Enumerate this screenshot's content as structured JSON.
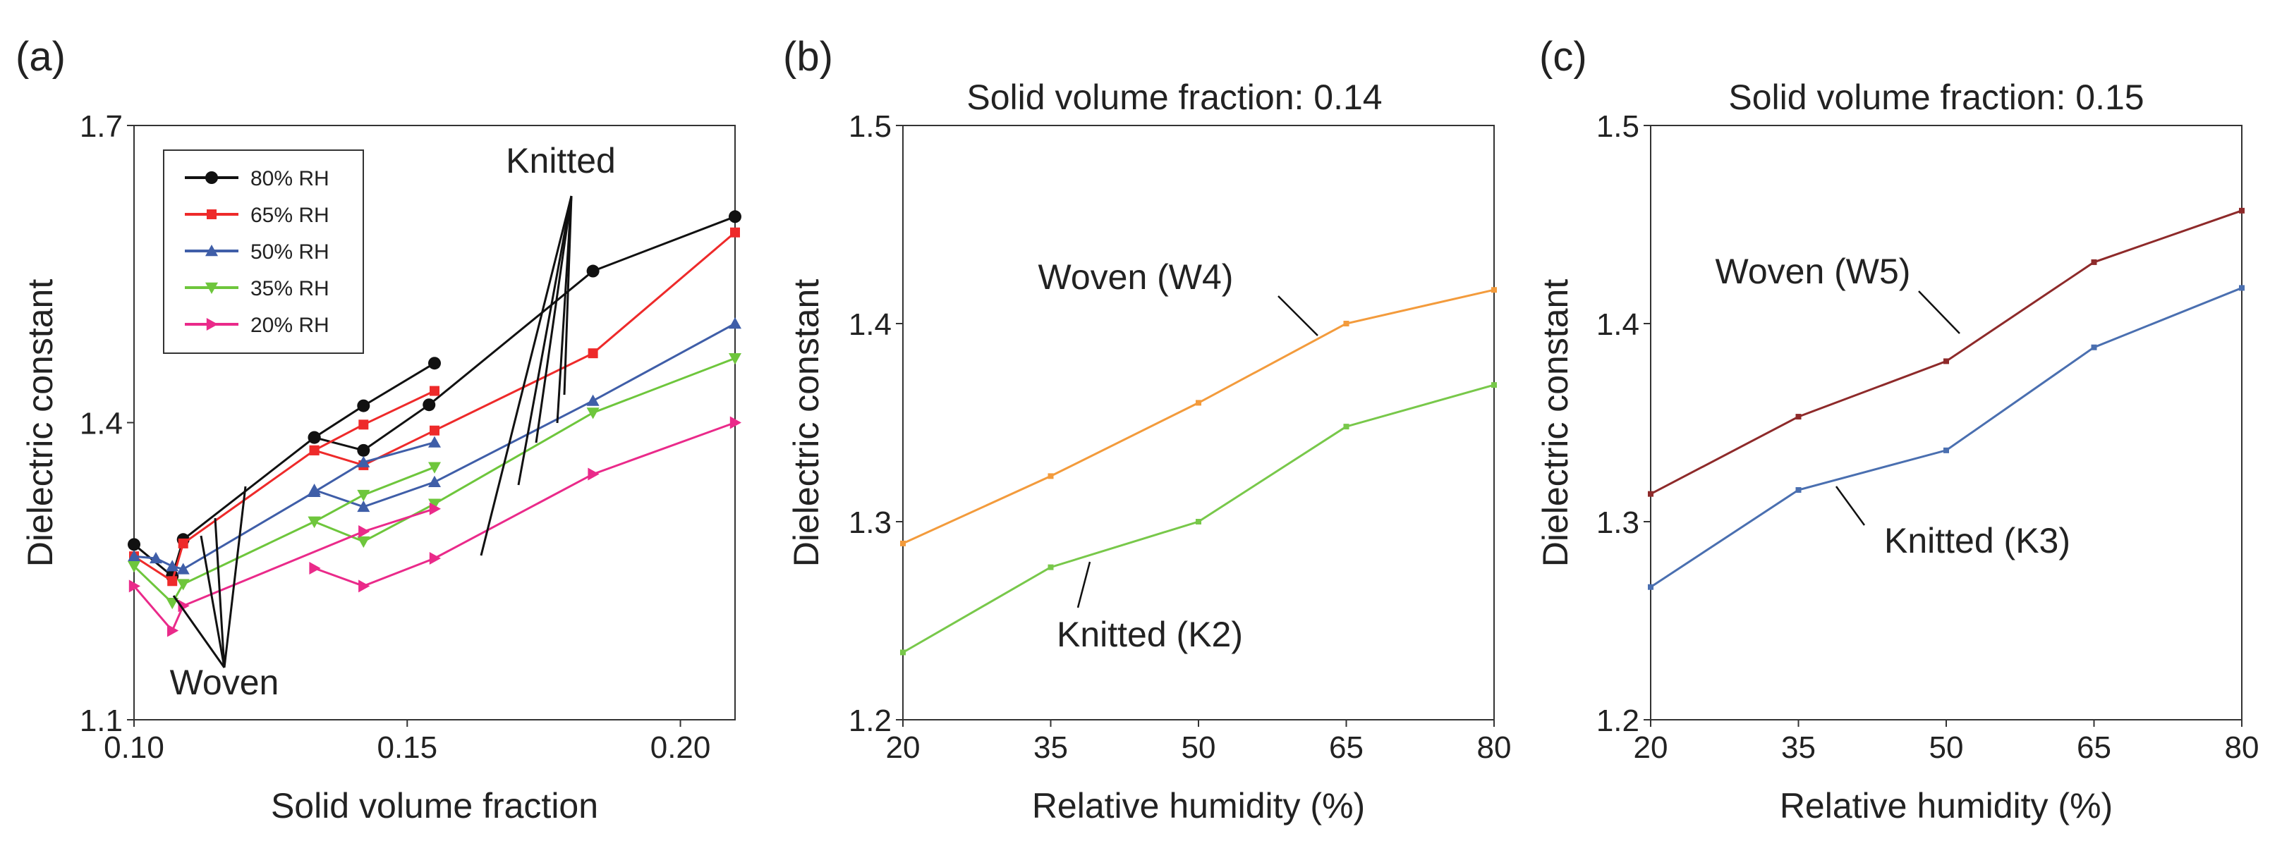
{
  "chart_data": [
    {
      "type": "line",
      "panel_label": "(a)",
      "title": "",
      "xlabel": "Solid volume fraction",
      "ylabel": "Dielectric constant",
      "xlim": [
        0.1,
        0.21
      ],
      "ylim": [
        1.1,
        1.7
      ],
      "xticks": [
        0.1,
        0.15,
        0.2
      ],
      "xtick_labels": [
        "0.10",
        "0.15",
        "0.20"
      ],
      "yticks": [
        1.1,
        1.4,
        1.7
      ],
      "ytick_labels": [
        "1.1",
        "1.4",
        "1.7"
      ],
      "legend_position": "top-left",
      "annotations": {
        "knitted": "Knitted",
        "woven": "Woven"
      },
      "series": [
        {
          "name": "80% RH",
          "color": "#111111",
          "marker": "circle",
          "segments": [
            [
              [
                0.1,
                1.277
              ],
              [
                0.107,
                1.245
              ],
              [
                0.109,
                1.282
              ],
              [
                0.133,
                1.385
              ],
              [
                0.142,
                1.417
              ],
              [
                0.155,
                1.46
              ]
            ],
            [
              [
                0.133,
                1.385
              ],
              [
                0.142,
                1.372
              ],
              [
                0.154,
                1.418
              ],
              [
                0.184,
                1.553
              ],
              [
                0.21,
                1.608
              ]
            ]
          ]
        },
        {
          "name": "65% RH",
          "color": "#ee2a2a",
          "marker": "square",
          "segments": [
            [
              [
                0.1,
                1.265
              ],
              [
                0.107,
                1.24
              ],
              [
                0.109,
                1.278
              ],
              [
                0.133,
                1.372
              ],
              [
                0.142,
                1.398
              ],
              [
                0.155,
                1.432
              ]
            ],
            [
              [
                0.133,
                1.372
              ],
              [
                0.142,
                1.357
              ],
              [
                0.155,
                1.392
              ],
              [
                0.184,
                1.47
              ],
              [
                0.21,
                1.592
              ]
            ]
          ]
        },
        {
          "name": "50% RH",
          "color": "#3f5ea8",
          "marker": "triangle-up",
          "segments": [
            [
              [
                0.1,
                1.265
              ],
              [
                0.104,
                1.263
              ],
              [
                0.107,
                1.255
              ],
              [
                0.109,
                1.252
              ],
              [
                0.133,
                1.33
              ],
              [
                0.142,
                1.36
              ],
              [
                0.155,
                1.38
              ]
            ],
            [
              [
                0.133,
                1.332
              ],
              [
                0.142,
                1.315
              ],
              [
                0.155,
                1.34
              ],
              [
                0.184,
                1.422
              ],
              [
                0.21,
                1.5
              ]
            ]
          ]
        },
        {
          "name": "35% RH",
          "color": "#6ec63c",
          "marker": "triangle-down",
          "segments": [
            [
              [
                0.1,
                1.255
              ],
              [
                0.107,
                1.218
              ],
              [
                0.109,
                1.237
              ],
              [
                0.133,
                1.3
              ],
              [
                0.142,
                1.327
              ],
              [
                0.155,
                1.355
              ]
            ],
            [
              [
                0.133,
                1.3
              ],
              [
                0.142,
                1.28
              ],
              [
                0.155,
                1.318
              ],
              [
                0.184,
                1.41
              ],
              [
                0.21,
                1.465
              ]
            ]
          ]
        },
        {
          "name": "20% RH",
          "color": "#ea2a8a",
          "marker": "triangle-right",
          "segments": [
            [
              [
                0.1,
                1.235
              ],
              [
                0.107,
                1.19
              ],
              [
                0.109,
                1.215
              ],
              [
                0.142,
                1.29
              ],
              [
                0.155,
                1.313
              ]
            ],
            [
              [
                0.133,
                1.253
              ],
              [
                0.142,
                1.235
              ],
              [
                0.155,
                1.263
              ],
              [
                0.184,
                1.348
              ],
              [
                0.21,
                1.4
              ]
            ]
          ]
        }
      ]
    },
    {
      "type": "line",
      "panel_label": "(b)",
      "title": "Solid volume fraction: 0.14",
      "xlabel": "Relative humidity (%)",
      "ylabel": "Dielectric constant",
      "xlim": [
        20,
        80
      ],
      "ylim": [
        1.2,
        1.5
      ],
      "xticks": [
        20,
        35,
        50,
        65,
        80
      ],
      "xtick_labels": [
        "20",
        "35",
        "50",
        "65",
        "80"
      ],
      "yticks": [
        1.2,
        1.3,
        1.4,
        1.5
      ],
      "ytick_labels": [
        "1.2",
        "1.3",
        "1.4",
        "1.5"
      ],
      "series": [
        {
          "name": "Woven (W4)",
          "color": "#f39b3c",
          "x": [
            20,
            35,
            50,
            65,
            80
          ],
          "y": [
            1.289,
            1.323,
            1.36,
            1.4,
            1.417
          ]
        },
        {
          "name": "Knitted (K2)",
          "color": "#78c84a",
          "x": [
            20,
            35,
            50,
            65,
            80
          ],
          "y": [
            1.234,
            1.277,
            1.3,
            1.348,
            1.369
          ]
        }
      ]
    },
    {
      "type": "line",
      "panel_label": "(c)",
      "title": "Solid volume fraction: 0.15",
      "xlabel": "Relative humidity (%)",
      "ylabel": "Dielectric constant",
      "xlim": [
        20,
        80
      ],
      "ylim": [
        1.2,
        1.5
      ],
      "xticks": [
        20,
        35,
        50,
        65,
        80
      ],
      "xtick_labels": [
        "20",
        "35",
        "50",
        "65",
        "80"
      ],
      "yticks": [
        1.2,
        1.3,
        1.4,
        1.5
      ],
      "ytick_labels": [
        "1.2",
        "1.3",
        "1.4",
        "1.5"
      ],
      "series": [
        {
          "name": "Woven (W5)",
          "color": "#8e2a2a",
          "x": [
            20,
            35,
            50,
            65,
            80
          ],
          "y": [
            1.314,
            1.353,
            1.381,
            1.431,
            1.457
          ]
        },
        {
          "name": "Knitted (K3)",
          "color": "#4a6fb0",
          "x": [
            20,
            35,
            50,
            65,
            80
          ],
          "y": [
            1.267,
            1.316,
            1.336,
            1.388,
            1.418
          ]
        }
      ]
    }
  ]
}
